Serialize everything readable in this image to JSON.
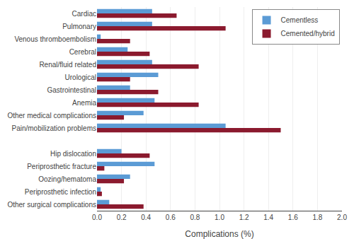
{
  "chart_data": {
    "type": "bar",
    "orientation": "horizontal",
    "categories": [
      "Cardiac",
      "Pulmonary",
      "Venous thromboembolism",
      "Cerebral",
      "Renal/fluid related",
      "Urological",
      "Gastrointestinal",
      "Anemia",
      "Other medical complications",
      "Pain/mobilization problems",
      null,
      "Hip dislocation",
      "Periprosthetic fracture",
      "Oozing/hematoma",
      "Periprosthetic infection",
      "Other surgical complications"
    ],
    "series": [
      {
        "name": "Cementless",
        "color": "#5b9bd5",
        "values": [
          0.45,
          0.45,
          0.03,
          0.25,
          0.45,
          0.5,
          0.27,
          0.47,
          0.38,
          1.05,
          0,
          0.2,
          0.47,
          0.27,
          0.03,
          0.1
        ]
      },
      {
        "name": "Cemented/hybrid",
        "color": "#8b1a2e",
        "values": [
          0.65,
          1.05,
          0.27,
          0.43,
          0.83,
          0.27,
          0.5,
          0.83,
          0.22,
          1.5,
          0,
          0.43,
          0.06,
          0.22,
          0.04,
          0.38
        ]
      }
    ],
    "xlabel": "Complications (%)",
    "xlim": [
      0,
      2.0
    ],
    "xticks": [
      {
        "value": 0,
        "label": "0.0"
      },
      0.2,
      0.4,
      0.6,
      0.8,
      {
        "value": 1.0,
        "label": "1.0"
      },
      1.2,
      1.4,
      1.6,
      1.8,
      {
        "value": 2.0,
        "label": "2.0"
      }
    ],
    "grid": true,
    "legend": "upper right"
  }
}
